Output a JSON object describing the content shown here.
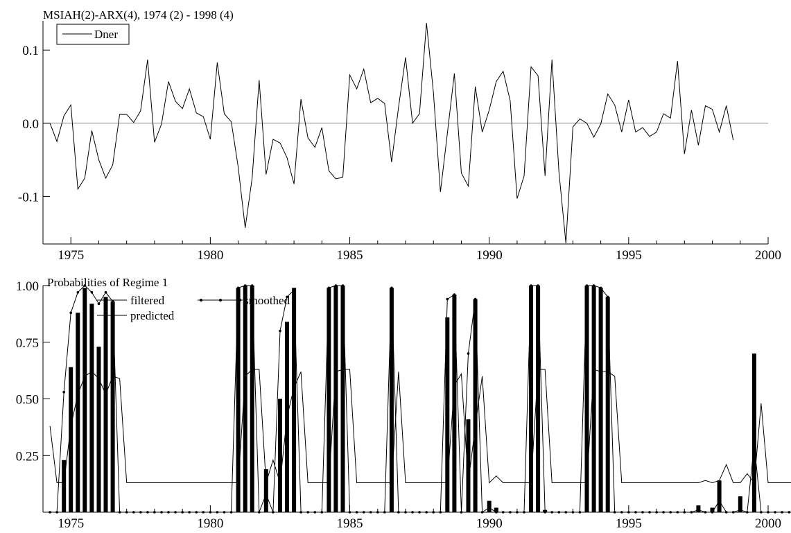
{
  "chart_data": [
    {
      "type": "line",
      "title": "MSIAH(2)-ARX(4), 1974 (2) - 1998 (4)",
      "xlabel": "",
      "ylabel": "",
      "xlim": [
        1974.0,
        2000.0
      ],
      "ylim": [
        -0.165,
        0.14
      ],
      "x_ticks": [
        1975,
        1980,
        1985,
        1990,
        1995,
        2000
      ],
      "y_ticks": [
        -0.1,
        0.0,
        0.1
      ],
      "y_tick_labels": [
        "-0.1",
        "0.0",
        "0.1"
      ],
      "zero_line": true,
      "legend_position": "top-left",
      "x_start": 1974.25,
      "x_step": 0.25,
      "series": [
        {
          "name": "Dner",
          "values": [
            0.0,
            -0.025,
            0.01,
            0.025,
            -0.09,
            -0.075,
            -0.01,
            -0.05,
            -0.075,
            -0.057,
            0.012,
            0.012,
            0.001,
            0.017,
            0.087,
            -0.026,
            -0.001,
            0.057,
            0.03,
            0.02,
            0.047,
            0.014,
            0.009,
            -0.022,
            0.083,
            0.013,
            0.002,
            -0.06,
            -0.143,
            -0.075,
            0.059,
            -0.07,
            -0.022,
            -0.027,
            -0.047,
            -0.083,
            0.033,
            -0.02,
            -0.033,
            -0.006,
            -0.065,
            -0.076,
            -0.074,
            0.066,
            0.047,
            0.074,
            0.028,
            0.034,
            0.027,
            -0.053,
            0.022,
            0.09,
            0.0,
            0.013,
            0.137,
            0.042,
            -0.094,
            -0.014,
            0.068,
            -0.068,
            -0.086,
            0.05,
            -0.012,
            0.018,
            0.057,
            0.071,
            0.031,
            -0.103,
            -0.072,
            0.077,
            0.065,
            -0.072,
            0.087,
            -0.067,
            -0.164,
            -0.005,
            0.006,
            0.0,
            -0.019,
            -0.001,
            0.04,
            0.025,
            -0.012,
            0.032,
            -0.012,
            -0.006,
            -0.018,
            -0.012,
            0.013,
            0.007,
            0.085,
            -0.042,
            0.018,
            -0.03,
            0.024,
            0.019,
            -0.012,
            0.024,
            -0.023
          ]
        }
      ]
    },
    {
      "type": "bar",
      "title": "Probabilities of Regime 1",
      "xlabel": "",
      "ylabel": "",
      "xlim": [
        1974.0,
        2000.0
      ],
      "ylim": [
        0.0,
        1.0
      ],
      "x_ticks": [
        1975,
        1980,
        1985,
        1990,
        1995,
        2000
      ],
      "y_ticks": [
        0.25,
        0.5,
        0.75,
        1.0
      ],
      "y_tick_labels": [
        "0.25",
        "0.50",
        "0.75",
        "1.00"
      ],
      "legend_position": "top-left",
      "x_start": 1974.25,
      "x_step": 0.25,
      "series": [
        {
          "name": "filtered",
          "values": [
            0.0,
            0.0,
            0.23,
            0.64,
            0.88,
            0.99,
            0.92,
            0.73,
            0.95,
            0.93,
            0.0,
            0.0,
            0.0,
            0.0,
            0.0,
            0.0,
            0.0,
            0.0,
            0.0,
            0.0,
            0.0,
            0.0,
            0.0,
            0.0,
            0.0,
            0.0,
            0.0,
            0.99,
            1.0,
            1.0,
            0.0,
            0.19,
            0.0,
            0.5,
            0.84,
            0.99,
            0.0,
            0.0,
            0.0,
            0.0,
            0.99,
            1.0,
            1.0,
            0.0,
            0.0,
            0.0,
            0.0,
            0.0,
            0.0,
            0.99,
            0.0,
            0.0,
            0.0,
            0.0,
            0.0,
            0.0,
            0.0,
            0.86,
            0.96,
            0.0,
            0.41,
            0.94,
            0.0,
            0.05,
            0.02,
            0.0,
            0.0,
            0.0,
            0.0,
            1.0,
            1.0,
            0.01,
            0.0,
            0.0,
            0.0,
            0.0,
            0.0,
            1.0,
            1.0,
            0.99,
            0.95,
            0.0,
            0.0,
            0.0,
            0.0,
            0.0,
            0.0,
            0.0,
            0.0,
            0.0,
            0.0,
            0.0,
            0.0,
            0.03,
            0.0,
            0.02,
            0.14,
            0.0,
            0.0,
            0.07,
            0.0,
            0.7,
            0.0,
            0.0,
            0.0,
            0.0,
            0.0,
            0.0,
            0.0
          ]
        },
        {
          "name": "smoothed",
          "values": [
            0.0,
            0.0,
            0.53,
            0.88,
            0.97,
            1.0,
            0.97,
            0.92,
            0.97,
            0.93,
            0.0,
            0.0,
            0.0,
            0.0,
            0.0,
            0.0,
            0.0,
            0.0,
            0.0,
            0.0,
            0.0,
            0.0,
            0.0,
            0.0,
            0.0,
            0.0,
            0.0,
            0.99,
            1.0,
            1.0,
            0.0,
            0.08,
            0.0,
            0.8,
            0.95,
            0.98,
            0.0,
            0.0,
            0.0,
            0.0,
            0.99,
            1.0,
            1.0,
            0.0,
            0.0,
            0.0,
            0.0,
            0.0,
            0.0,
            0.99,
            0.0,
            0.0,
            0.0,
            0.0,
            0.0,
            0.0,
            0.0,
            0.94,
            0.96,
            0.0,
            0.7,
            0.94,
            0.0,
            0.02,
            0.0,
            0.0,
            0.0,
            0.0,
            0.0,
            1.0,
            1.0,
            0.0,
            0.0,
            0.0,
            0.0,
            0.0,
            0.0,
            1.0,
            1.0,
            0.99,
            0.95,
            0.0,
            0.0,
            0.0,
            0.0,
            0.0,
            0.0,
            0.0,
            0.0,
            0.0,
            0.0,
            0.0,
            0.0,
            0.01,
            0.0,
            0.0,
            0.05,
            0.0,
            0.0,
            0.01,
            0.0,
            0.3,
            0.0,
            0.0,
            0.0,
            0.0,
            0.0,
            0.0,
            0.0
          ]
        },
        {
          "name": "predicted",
          "values": [
            0.38,
            0.13,
            0.13,
            0.38,
            0.52,
            0.6,
            0.62,
            0.59,
            0.52,
            0.6,
            0.59,
            0.13,
            0.13,
            0.13,
            0.13,
            0.13,
            0.13,
            0.13,
            0.13,
            0.13,
            0.13,
            0.13,
            0.13,
            0.13,
            0.13,
            0.13,
            0.13,
            0.13,
            0.6,
            0.63,
            0.63,
            0.13,
            0.23,
            0.13,
            0.42,
            0.55,
            0.62,
            0.13,
            0.13,
            0.13,
            0.13,
            0.62,
            0.63,
            0.63,
            0.13,
            0.13,
            0.13,
            0.13,
            0.13,
            0.13,
            0.62,
            0.13,
            0.13,
            0.13,
            0.13,
            0.13,
            0.13,
            0.13,
            0.56,
            0.61,
            0.13,
            0.38,
            0.6,
            0.13,
            0.16,
            0.13,
            0.13,
            0.13,
            0.13,
            0.13,
            0.63,
            0.63,
            0.13,
            0.13,
            0.13,
            0.13,
            0.13,
            0.13,
            0.63,
            0.62,
            0.62,
            0.6,
            0.13,
            0.13,
            0.13,
            0.13,
            0.13,
            0.13,
            0.13,
            0.13,
            0.13,
            0.13,
            0.13,
            0.13,
            0.14,
            0.13,
            0.14,
            0.21,
            0.13,
            0.13,
            0.17,
            0.13,
            0.48,
            0.13,
            0.13,
            0.13,
            0.13,
            0.13,
            0.13,
            0.13
          ]
        }
      ]
    }
  ]
}
